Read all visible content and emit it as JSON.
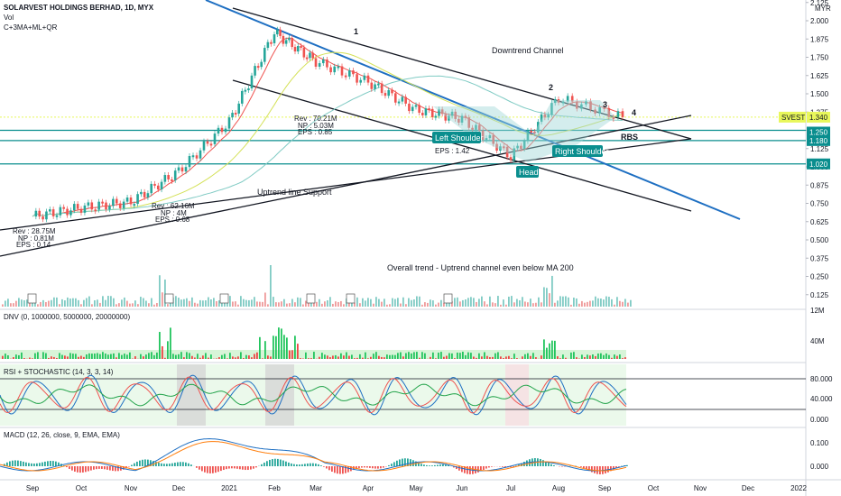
{
  "header": {
    "title": "SOLARVEST HOLDINGS BERHAD, 1D, MYX",
    "vol_label": "Vol",
    "indicator_label": "C+3MA+ML+QR"
  },
  "price_axis": {
    "currency": "MYR",
    "ticks": [
      "2.125",
      "2.000",
      "1.875",
      "1.750",
      "1.625",
      "1.500",
      "1.375",
      "1.250",
      "1.125",
      "1.000",
      "0.875",
      "0.750",
      "0.625",
      "0.500",
      "0.375",
      "0.250",
      "0.125"
    ],
    "tick_values": [
      2.125,
      2.0,
      1.875,
      1.75,
      1.625,
      1.5,
      1.375,
      1.25,
      1.125,
      1.0,
      0.875,
      0.75,
      0.625,
      0.5,
      0.375,
      0.25,
      0.125
    ]
  },
  "badges": [
    {
      "text": "SVEST",
      "value": 1.34,
      "color": "#e8f75b",
      "text_color": "#131722"
    },
    {
      "text": "1.340",
      "value": 1.34,
      "color": "#e8f75b",
      "text_color": "#131722"
    },
    {
      "text": "1.250",
      "value": 1.25,
      "color": "#0a8e8e",
      "text_color": "#ffffff"
    },
    {
      "text": "1.180",
      "value": 1.18,
      "color": "#0a8e8e",
      "text_color": "#ffffff"
    },
    {
      "text": "1.020",
      "value": 1.02,
      "color": "#0a8e8e",
      "text_color": "#ffffff"
    }
  ],
  "x_axis": {
    "months": [
      "Sep",
      "Oct",
      "Nov",
      "Dec",
      "2021",
      "Feb",
      "Mar",
      "Apr",
      "May",
      "Jun",
      "Jul",
      "Aug",
      "Sep",
      "Oct",
      "Nov",
      "Dec",
      "2022"
    ]
  },
  "annotations": {
    "downtrend": "Downtrend Channel",
    "uptrend_support": "Uptrend line Support",
    "overall": "Overall trend - Uptrend channel even below MA 200",
    "rbs": "RBS",
    "wave_numbers": [
      "1",
      "2",
      "3",
      "4"
    ],
    "pattern_labels": [
      "Left Shoulder",
      "Head",
      "Right Shoulder"
    ],
    "earnings_notes": [
      {
        "rev": "Rev : 28.75M",
        "np": "NP : 0.81M",
        "eps": "EPS : 0.14"
      },
      {
        "rev": "Rev : 62.16M",
        "np": "NP : 4M",
        "eps": "EPS : 0.68"
      },
      {
        "rev": "Rev : 70.21M",
        "np": "NP : 5.03M",
        "eps": "EPS : 0.85"
      },
      {
        "rev": "",
        "np": "",
        "eps": "EPS : 1.42"
      }
    ]
  },
  "volume_axis": {
    "label": "12M"
  },
  "dnv": {
    "label": "DNV (0, 1000000, 5000000, 20000000)",
    "axis": "40M"
  },
  "rsi": {
    "label": "RSI + STOCHASTIC (14, 3, 3, 14)",
    "ticks": [
      "80.000",
      "40.000",
      "0.000"
    ]
  },
  "macd": {
    "label": "MACD (12, 26, close, 9, EMA, EMA)",
    "ticks": [
      "0.100",
      "0.000"
    ]
  },
  "chart_data": {
    "type": "line",
    "title": "SOLARVEST HOLDINGS BERHAD, 1D, MYX",
    "xlabel": "",
    "ylabel": "",
    "ylim": [
      0.0,
      2.15
    ],
    "x": [
      "Sep",
      "Oct",
      "Nov",
      "Dec",
      "2021",
      "Feb",
      "Mar",
      "Apr",
      "May",
      "Jun",
      "Jul",
      "Aug",
      "Sep"
    ],
    "series": [
      {
        "values": [
          0.66,
          0.72,
          0.76,
          0.97,
          1.31,
          1.92,
          1.72,
          1.58,
          1.39,
          1.33,
          1.07,
          1.47,
          1.34
        ]
      }
    ],
    "horizontal_levels": [
      1.25,
      1.18,
      1.02
    ],
    "last_price": 1.34
  }
}
